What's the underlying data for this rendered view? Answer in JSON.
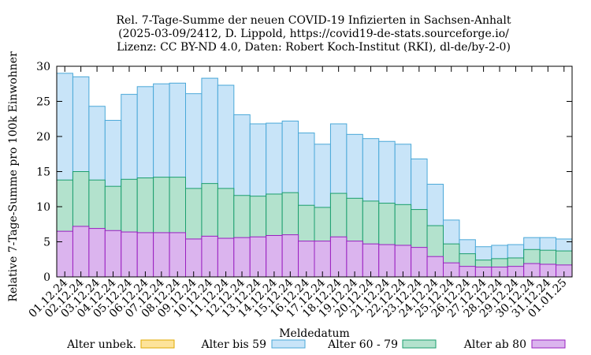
{
  "chart_data": {
    "type": "bar",
    "stacked": "overlay",
    "title_lines": [
      "Rel. 7-Tage-Summe der neuen COVID-19 Infizierten in Sachsen-Anhalt",
      "(2025-03-09/2412, D. Lippold, https://covid19-de-stats.sourceforge.io/",
      "Lizenz: CC BY-ND 4.0, Daten: Robert Koch-Institut (RKI), dl-de/by-2-0)"
    ],
    "xlabel": "Meldedatum",
    "ylabel": "Relative 7-Tage-Summe pro 100k Einwohner",
    "ylim": [
      0,
      30
    ],
    "yticks": [
      0,
      5,
      10,
      15,
      20,
      25,
      30
    ],
    "grid": false,
    "legend_position": "bottom",
    "categories": [
      "01.12.24",
      "02.12.24",
      "03.12.24",
      "04.12.24",
      "05.12.24",
      "06.12.24",
      "07.12.24",
      "08.12.24",
      "09.12.24",
      "10.12.24",
      "11.12.24",
      "12.12.24",
      "13.12.24",
      "14.12.24",
      "15.12.24",
      "16.12.24",
      "17.12.24",
      "18.12.24",
      "19.12.24",
      "20.12.24",
      "21.12.24",
      "22.12.24",
      "23.12.24",
      "24.12.24",
      "25.12.24",
      "26.12.24",
      "27.12.24",
      "28.12.24",
      "29.12.24",
      "30.12.24",
      "31.12.24",
      "01.01.25"
    ],
    "series": [
      {
        "name": "Alter unbek.",
        "color": "#fde39a",
        "stroke": "#e0a800",
        "values": [
          0,
          0,
          0,
          0,
          0,
          0,
          0,
          0,
          0,
          0,
          0,
          0,
          0,
          0,
          0,
          0,
          0,
          0,
          0,
          0,
          0,
          0,
          0,
          0,
          0,
          0,
          0,
          0,
          0,
          0,
          0,
          0
        ]
      },
      {
        "name": "Alter bis 59",
        "color": "#c8e4f8",
        "stroke": "#4aa8d8",
        "values": [
          29.0,
          28.5,
          24.3,
          22.3,
          26.0,
          27.1,
          27.5,
          27.6,
          26.1,
          28.3,
          27.3,
          23.1,
          21.8,
          21.9,
          22.2,
          20.5,
          18.9,
          21.8,
          20.3,
          19.7,
          19.3,
          18.9,
          16.8,
          13.2,
          8.1,
          5.3,
          4.3,
          4.5,
          4.6,
          5.6,
          5.6,
          5.4
        ]
      },
      {
        "name": "Alter 60 - 79",
        "color": "#b3e2cd",
        "stroke": "#1b9e6e",
        "values": [
          13.8,
          15.0,
          13.8,
          12.9,
          13.9,
          14.1,
          14.2,
          14.2,
          12.6,
          13.3,
          12.6,
          11.6,
          11.5,
          11.8,
          12.0,
          10.2,
          9.9,
          11.9,
          11.2,
          10.8,
          10.5,
          10.3,
          9.6,
          7.3,
          4.7,
          3.3,
          2.4,
          2.6,
          2.7,
          3.9,
          3.8,
          3.7
        ]
      },
      {
        "name": "Alter ab 80",
        "color": "#dbb4ee",
        "stroke": "#9a1fc0",
        "values": [
          6.5,
          7.2,
          6.9,
          6.6,
          6.4,
          6.3,
          6.3,
          6.3,
          5.4,
          5.8,
          5.5,
          5.6,
          5.7,
          5.9,
          6.0,
          5.1,
          5.1,
          5.7,
          5.1,
          4.7,
          4.6,
          4.5,
          4.2,
          2.9,
          2.0,
          1.5,
          1.4,
          1.4,
          1.5,
          1.9,
          1.8,
          1.7
        ]
      }
    ]
  }
}
